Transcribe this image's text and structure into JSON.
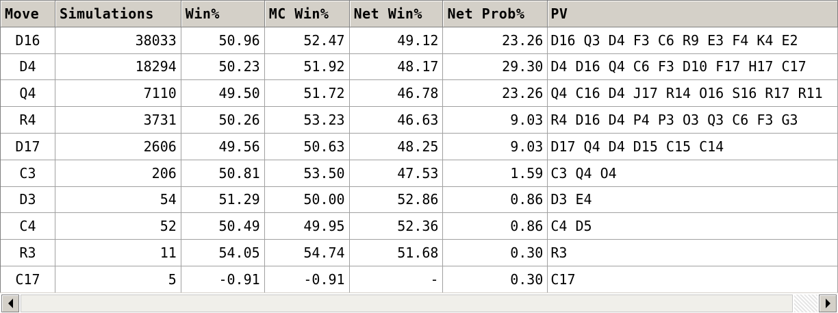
{
  "table": {
    "columns": [
      "Move",
      "Simulations",
      "Win%",
      "MC Win%",
      "Net Win%",
      "Net Prob%",
      "PV"
    ],
    "rows": [
      {
        "move": "D16",
        "simulations": "38033",
        "win": "50.96",
        "mc_win": "52.47",
        "net_win": "49.12",
        "net_prob": "23.26",
        "pv": "D16 Q3 D4 F3 C6 R9 E3 F4 K4 E2"
      },
      {
        "move": "D4",
        "simulations": "18294",
        "win": "50.23",
        "mc_win": "51.92",
        "net_win": "48.17",
        "net_prob": "29.30",
        "pv": "D4 D16 Q4 C6 F3 D10 F17 H17 C17"
      },
      {
        "move": "Q4",
        "simulations": "7110",
        "win": "49.50",
        "mc_win": "51.72",
        "net_win": "46.78",
        "net_prob": "23.26",
        "pv": "Q4 C16 D4 J17 R14 O16 S16 R17 R11"
      },
      {
        "move": "R4",
        "simulations": "3731",
        "win": "50.26",
        "mc_win": "53.23",
        "net_win": "46.63",
        "net_prob": "9.03",
        "pv": "R4 D16 D4 P4 P3 O3 Q3 C6 F3 G3"
      },
      {
        "move": "D17",
        "simulations": "2606",
        "win": "49.56",
        "mc_win": "50.63",
        "net_win": "48.25",
        "net_prob": "9.03",
        "pv": "D17 Q4 D4 D15 C15 C14"
      },
      {
        "move": "C3",
        "simulations": "206",
        "win": "50.81",
        "mc_win": "53.50",
        "net_win": "47.53",
        "net_prob": "1.59",
        "pv": "C3 Q4 O4"
      },
      {
        "move": "D3",
        "simulations": "54",
        "win": "51.29",
        "mc_win": "50.00",
        "net_win": "52.86",
        "net_prob": "0.86",
        "pv": "D3 E4"
      },
      {
        "move": "C4",
        "simulations": "52",
        "win": "50.49",
        "mc_win": "49.95",
        "net_win": "52.36",
        "net_prob": "0.86",
        "pv": "C4 D5"
      },
      {
        "move": "R3",
        "simulations": "11",
        "win": "54.05",
        "mc_win": "54.74",
        "net_win": "51.68",
        "net_prob": "0.30",
        "pv": "R3"
      },
      {
        "move": "C17",
        "simulations": "5",
        "win": "-0.91",
        "mc_win": "-0.91",
        "net_win": "-",
        "net_prob": "0.30",
        "pv": "C17"
      }
    ]
  },
  "scrollbar": {
    "left_icon": "arrow-left-icon",
    "right_icon": "arrow-right-icon"
  }
}
